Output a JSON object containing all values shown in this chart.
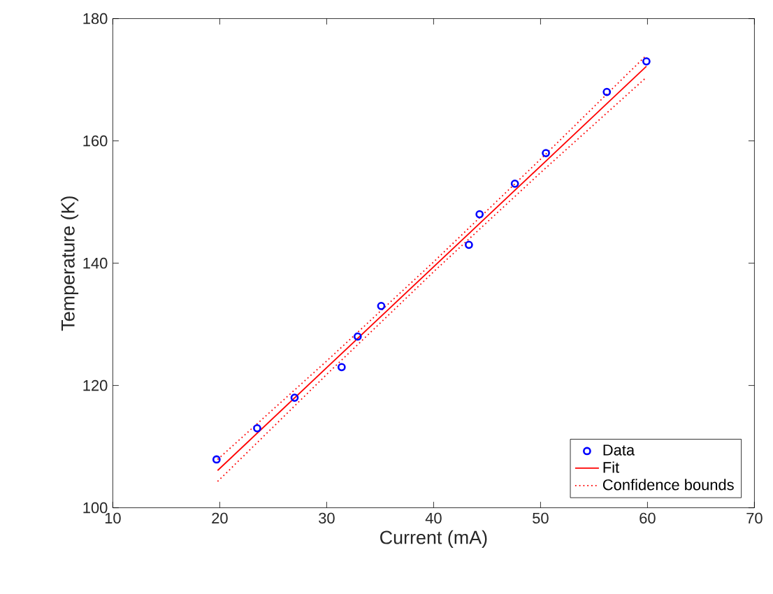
{
  "chart_data": {
    "type": "scatter",
    "xlabel": "Current (mA)",
    "ylabel": "Temperature (K)",
    "xlim": [
      10,
      70
    ],
    "ylim": [
      100,
      180
    ],
    "xticks": [
      10,
      20,
      30,
      40,
      50,
      60,
      70
    ],
    "yticks": [
      100,
      120,
      140,
      160,
      180
    ],
    "grid": false,
    "legend": "bottom right",
    "series": [
      {
        "name": "Data",
        "marker": "circle",
        "color": "#0000ff",
        "x": [
          19.7,
          23.5,
          27.0,
          31.4,
          32.9,
          35.1,
          43.3,
          44.3,
          47.6,
          50.5,
          56.2,
          59.9
        ],
        "values": [
          107.9,
          113.0,
          118.0,
          123.0,
          128.0,
          133.0,
          143.0,
          148.0,
          153.0,
          158.0,
          168.0,
          173.0
        ]
      },
      {
        "name": "Fit",
        "type": "line",
        "line_style": "solid",
        "color": "#ff0000",
        "x": [
          19.8,
          59.9
        ],
        "values": [
          106.1,
          172.2
        ]
      },
      {
        "name": "Confidence bounds",
        "type": "line",
        "line_style": "dotted",
        "color": "#ff0000",
        "x": [
          19.8,
          30,
          40,
          50,
          59.9
        ],
        "values": [
          104.3,
          121.8,
          138.6,
          154.8,
          170.4
        ]
      },
      {
        "type": "line",
        "line_style": "dotted",
        "color": "#ff0000",
        "x": [
          19.8,
          30,
          40,
          50,
          59.9
        ],
        "values": [
          107.9,
          124.0,
          140.2,
          157.0,
          174.0
        ]
      }
    ]
  }
}
